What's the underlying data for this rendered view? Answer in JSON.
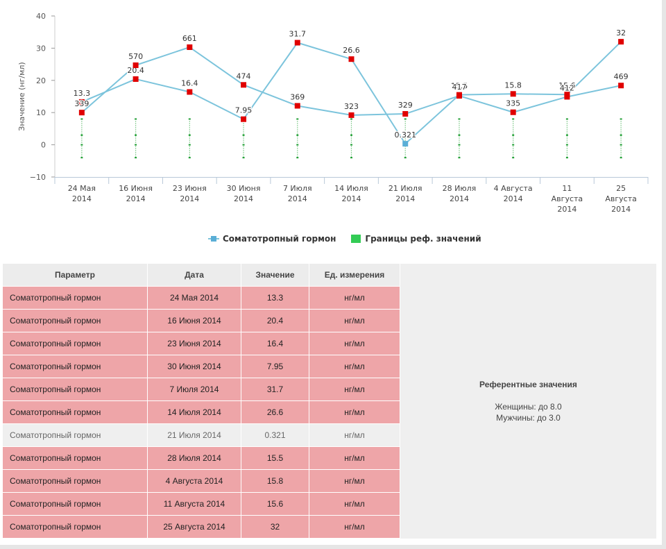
{
  "chart_data": {
    "type": "line",
    "ylabel": "Значение (нг/мл)",
    "ylim": [
      -10,
      40
    ],
    "y_ticks": [
      "40",
      "30",
      "20",
      "10",
      "0",
      "−10"
    ],
    "categories": [
      [
        "24 Мая",
        "2014"
      ],
      [
        "16 Июня",
        "2014"
      ],
      [
        "23 Июня",
        "2014"
      ],
      [
        "30 Июня",
        "2014"
      ],
      [
        "7 Июля",
        "2014"
      ],
      [
        "14 Июля",
        "2014"
      ],
      [
        "21 Июля",
        "2014"
      ],
      [
        "28 Июля",
        "2014"
      ],
      [
        "4 Августа",
        "2014"
      ],
      [
        "11",
        "Августа",
        "2014"
      ],
      [
        "25",
        "Августа",
        "2014"
      ]
    ],
    "series": [
      {
        "name": "Соматотропный гормон",
        "color": "#7cc4dc",
        "values": [
          13.3,
          20.4,
          16.4,
          7.95,
          31.7,
          26.6,
          0.321,
          15.5,
          15.8,
          15.6,
          32
        ],
        "labels": [
          "13.3",
          "20.4",
          "16.4",
          "7.95",
          "31.7",
          "26.6",
          "0.321",
          "15.5",
          "15.8",
          "15.6",
          "32"
        ],
        "out_of_range": [
          true,
          true,
          true,
          true,
          true,
          true,
          false,
          true,
          true,
          true,
          true
        ]
      },
      {
        "name": "",
        "color": "#7cc4dc",
        "values": [
          10,
          24.7,
          30.3,
          18.6,
          12.1,
          9.2,
          9.6,
          15.2,
          10.1,
          14.9,
          18.4
        ],
        "labels": [
          "339",
          "570",
          "661",
          "474",
          "369",
          "323",
          "329",
          "417",
          "335",
          "412",
          "469"
        ],
        "out_of_range": [
          true,
          true,
          true,
          true,
          true,
          true,
          true,
          true,
          true,
          true,
          true
        ]
      }
    ],
    "reference_bounds": {
      "name": "Границы реф. значений",
      "color": "#33aa44",
      "lower": -4,
      "upper": 8,
      "markers": [
        3,
        0
      ]
    },
    "out_of_range_color": "#e00000",
    "in_range_color": "#5aaed6"
  },
  "legend": {
    "series_label": "Соматотропный гормон",
    "reference_label": "Границы реф. значений"
  },
  "table": {
    "headers": {
      "param": "Параметр",
      "date": "Дата",
      "value": "Значение",
      "unit": "Ед. измерения"
    },
    "rows": [
      {
        "param": "Соматотропный гормон",
        "date": "24 Мая 2014",
        "value": "13.3",
        "unit": "нг/мл",
        "out": true
      },
      {
        "param": "Соматотропный гормон",
        "date": "16 Июня 2014",
        "value": "20.4",
        "unit": "нг/мл",
        "out": true
      },
      {
        "param": "Соматотропный гормон",
        "date": "23 Июня 2014",
        "value": "16.4",
        "unit": "нг/мл",
        "out": true
      },
      {
        "param": "Соматотропный гормон",
        "date": "30 Июня 2014",
        "value": "7.95",
        "unit": "нг/мл",
        "out": true
      },
      {
        "param": "Соматотропный гормон",
        "date": "7 Июля 2014",
        "value": "31.7",
        "unit": "нг/мл",
        "out": true
      },
      {
        "param": "Соматотропный гормон",
        "date": "14 Июля 2014",
        "value": "26.6",
        "unit": "нг/мл",
        "out": true
      },
      {
        "param": "Соматотропный гормон",
        "date": "21 Июля 2014",
        "value": "0.321",
        "unit": "нг/мл",
        "out": false
      },
      {
        "param": "Соматотропный гормон",
        "date": "28 Июля 2014",
        "value": "15.5",
        "unit": "нг/мл",
        "out": true
      },
      {
        "param": "Соматотропный гормон",
        "date": "4 Августа 2014",
        "value": "15.8",
        "unit": "нг/мл",
        "out": true
      },
      {
        "param": "Соматотропный гормон",
        "date": "11 Августа 2014",
        "value": "15.6",
        "unit": "нг/мл",
        "out": true
      },
      {
        "param": "Соматотропный гормон",
        "date": "25 Августа 2014",
        "value": "32",
        "unit": "нг/мл",
        "out": true
      }
    ],
    "out_color": "#eea5a8",
    "in_color": "#efefef"
  },
  "reference": {
    "title": "Референтные значения",
    "women": "Женщины: до 8.0",
    "men": "Мужчины: до 3.0"
  }
}
